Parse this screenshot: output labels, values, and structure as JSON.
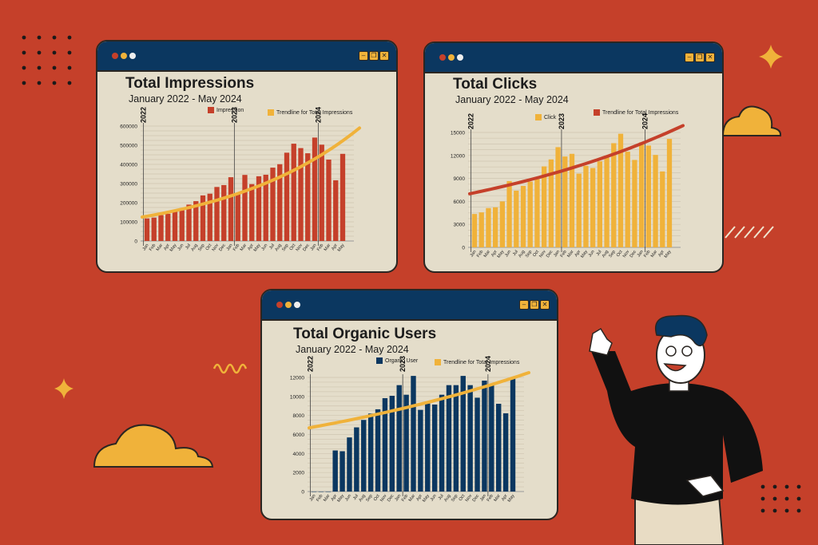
{
  "months": [
    "Jan",
    "Feb",
    "Mar",
    "Apr",
    "May",
    "Jun",
    "Jul",
    "Aug",
    "Sep",
    "Oct",
    "Nov",
    "Dec",
    "Jan",
    "Feb",
    "Mar",
    "Apr",
    "May",
    "Jun",
    "Jul",
    "Aug",
    "Sep",
    "Oct",
    "Nov",
    "Dec",
    "Jan",
    "Feb",
    "Mar",
    "Apr",
    "May"
  ],
  "years": [
    {
      "label": "2022",
      "index": 0
    },
    {
      "label": "2023",
      "index": 13
    },
    {
      "label": "2024",
      "index": 25
    }
  ],
  "window_controls": {
    "minimize": "–",
    "restore": "❐",
    "close": "✕"
  },
  "colors": {
    "background": "#c5402a",
    "titlebar": "#0b3760",
    "panel": "#e4ddca",
    "red": "#c5402a",
    "yellow": "#f0b23a",
    "navy": "#0b3760"
  },
  "chart_data": [
    {
      "type": "bar",
      "title": "Total Impressions",
      "subtitle": "January 2022 - May 2024",
      "series_name": "Impression",
      "trend_name": "Trendline for Total Impressions",
      "bar_color": "#c5402a",
      "trend_color": "#f0b23a",
      "ylim": [
        0,
        600000
      ],
      "yticks": [
        0,
        100000,
        200000,
        300000,
        400000,
        500000,
        600000
      ],
      "values": [
        118000,
        122000,
        135000,
        142000,
        153000,
        160000,
        190000,
        208000,
        238000,
        247000,
        282000,
        292000,
        333000,
        250000,
        345000,
        297000,
        338000,
        346000,
        383000,
        401000,
        461000,
        508000,
        485000,
        458000,
        540000,
        503000,
        425000,
        317000,
        455000
      ],
      "trendline": {
        "start": 125000,
        "end": 590000
      }
    },
    {
      "type": "bar",
      "title": "Total Clicks",
      "subtitle": "January 2022 - May 2024",
      "series_name": "Click",
      "trend_name": "Trendline for Total Impressions",
      "bar_color": "#f0b23a",
      "trend_color": "#c5402a",
      "ylim": [
        0,
        15000
      ],
      "yticks": [
        0,
        3000,
        6000,
        9000,
        12000,
        15000
      ],
      "values": [
        4360,
        4570,
        5130,
        5230,
        6000,
        8650,
        7400,
        8020,
        8580,
        8900,
        10570,
        11480,
        13080,
        11860,
        12210,
        9630,
        10640,
        10360,
        11230,
        11720,
        13600,
        14830,
        12490,
        11410,
        13710,
        13290,
        12070,
        9910,
        14160
      ],
      "trendline": {
        "start": 7000,
        "end": 15900
      }
    },
    {
      "type": "bar",
      "title": "Total Organic Users",
      "subtitle": "January 2022 - May 2024",
      "series_name": "Organic User",
      "trend_name": "Trendline for Total Impressions",
      "bar_color": "#0b3760",
      "trend_color": "#f0b23a",
      "ylim": [
        0,
        12000
      ],
      "yticks": [
        0,
        2000,
        4000,
        6000,
        8000,
        10000,
        12000
      ],
      "values": [
        0,
        0,
        0,
        4320,
        4240,
        5690,
        6750,
        7530,
        8200,
        8650,
        9820,
        10070,
        11190,
        10180,
        12160,
        8590,
        9260,
        9150,
        10180,
        11190,
        11190,
        12160,
        11190,
        9870,
        11660,
        11160,
        9230,
        8230,
        11880
      ],
      "trendline": {
        "start": 6700,
        "end": 12500
      }
    }
  ]
}
